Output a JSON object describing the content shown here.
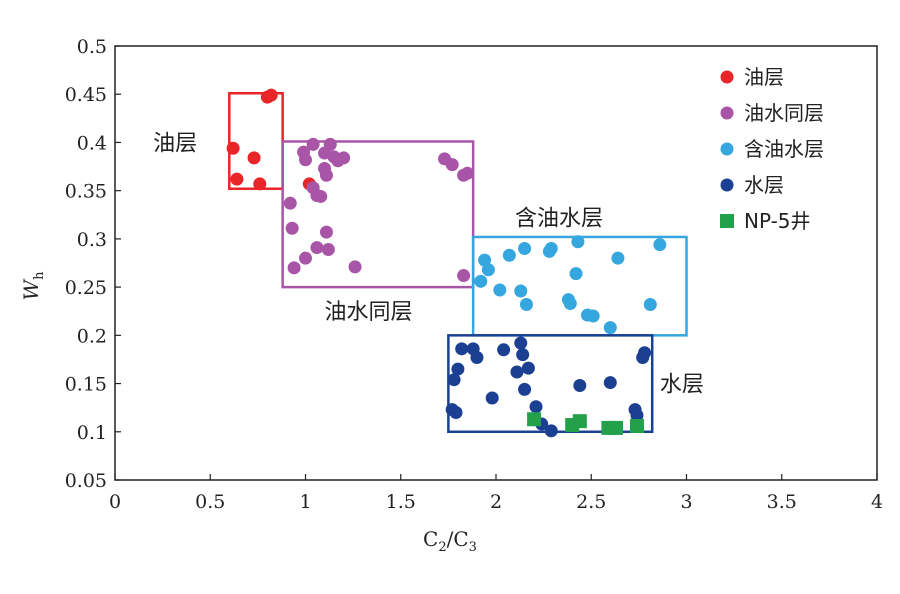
{
  "chart_data": {
    "type": "scatter",
    "xlabel": {
      "base": "C",
      "sub1": "2",
      "mid": "/C",
      "sub2": "3"
    },
    "ylabel": {
      "base": "W",
      "sub": "h"
    },
    "xlim": [
      0,
      4
    ],
    "ylim": [
      0.05,
      0.5
    ],
    "xticks": [
      "0",
      "0.5",
      "1",
      "1.5",
      "2",
      "2.5",
      "3",
      "3.5",
      "4"
    ],
    "yticks": [
      "0.05",
      "0.1",
      "0.15",
      "0.2",
      "0.25",
      "0.3",
      "0.35",
      "0.4",
      "0.45",
      "0.5"
    ],
    "grid": false,
    "legend_position": "top-right",
    "series": [
      {
        "name": "油层",
        "color": "#e8262a",
        "marker": "circle",
        "points": [
          [
            0.82,
            0.449
          ],
          [
            0.8,
            0.447
          ],
          [
            0.62,
            0.394
          ],
          [
            0.73,
            0.384
          ],
          [
            0.64,
            0.362
          ],
          [
            0.76,
            0.357
          ],
          [
            1.02,
            0.357
          ]
        ]
      },
      {
        "name": "油水同层",
        "color": "#a855a8",
        "marker": "circle",
        "points": [
          [
            1.04,
            0.398
          ],
          [
            1.13,
            0.398
          ],
          [
            0.99,
            0.39
          ],
          [
            1.1,
            0.389
          ],
          [
            1.0,
            0.382
          ],
          [
            1.15,
            0.385
          ],
          [
            1.2,
            0.384
          ],
          [
            1.17,
            0.381
          ],
          [
            1.1,
            0.373
          ],
          [
            1.11,
            0.366
          ],
          [
            1.04,
            0.353
          ],
          [
            1.06,
            0.345
          ],
          [
            1.08,
            0.344
          ],
          [
            0.92,
            0.337
          ],
          [
            1.73,
            0.383
          ],
          [
            1.77,
            0.377
          ],
          [
            1.83,
            0.366
          ],
          [
            1.85,
            0.368
          ],
          [
            0.93,
            0.311
          ],
          [
            1.11,
            0.307
          ],
          [
            1.06,
            0.291
          ],
          [
            1.12,
            0.289
          ],
          [
            1.0,
            0.28
          ],
          [
            0.94,
            0.27
          ],
          [
            1.26,
            0.271
          ],
          [
            1.83,
            0.262
          ]
        ]
      },
      {
        "name": "含油水层",
        "color": "#35a7de",
        "marker": "circle",
        "points": [
          [
            2.29,
            0.29
          ],
          [
            2.15,
            0.29
          ],
          [
            2.43,
            0.297
          ],
          [
            2.28,
            0.287
          ],
          [
            2.86,
            0.294
          ],
          [
            2.64,
            0.28
          ],
          [
            2.07,
            0.283
          ],
          [
            1.94,
            0.278
          ],
          [
            1.96,
            0.268
          ],
          [
            2.42,
            0.264
          ],
          [
            1.92,
            0.256
          ],
          [
            2.02,
            0.247
          ],
          [
            2.13,
            0.246
          ],
          [
            2.38,
            0.237
          ],
          [
            2.39,
            0.233
          ],
          [
            2.16,
            0.232
          ],
          [
            2.81,
            0.232
          ],
          [
            2.48,
            0.221
          ],
          [
            2.51,
            0.22
          ],
          [
            2.6,
            0.208
          ]
        ]
      },
      {
        "name": "水层",
        "color": "#1b3f91",
        "marker": "circle",
        "points": [
          [
            1.82,
            0.186
          ],
          [
            1.88,
            0.186
          ],
          [
            2.13,
            0.192
          ],
          [
            2.04,
            0.185
          ],
          [
            2.14,
            0.18
          ],
          [
            1.9,
            0.177
          ],
          [
            2.78,
            0.182
          ],
          [
            2.77,
            0.177
          ],
          [
            1.8,
            0.165
          ],
          [
            2.17,
            0.166
          ],
          [
            2.11,
            0.162
          ],
          [
            1.78,
            0.154
          ],
          [
            2.44,
            0.148
          ],
          [
            2.6,
            0.151
          ],
          [
            2.15,
            0.144
          ],
          [
            2.21,
            0.126
          ],
          [
            1.98,
            0.135
          ],
          [
            1.77,
            0.123
          ],
          [
            1.79,
            0.12
          ],
          [
            2.73,
            0.123
          ],
          [
            2.74,
            0.117
          ],
          [
            2.24,
            0.108
          ],
          [
            2.29,
            0.101
          ]
        ]
      },
      {
        "name": "NP-5井",
        "color": "#23a04a",
        "marker": "square",
        "points": [
          [
            2.2,
            0.113
          ],
          [
            2.44,
            0.111
          ],
          [
            2.4,
            0.107
          ],
          [
            2.59,
            0.104
          ],
          [
            2.63,
            0.104
          ],
          [
            2.74,
            0.106
          ]
        ]
      }
    ],
    "regions": [
      {
        "label": "油层",
        "color": "#e8262a",
        "x": [
          0.6,
          0.88
        ],
        "y": [
          0.352,
          0.451
        ],
        "label_x": 0.2,
        "label_y": 0.4
      },
      {
        "label": "油水同层",
        "color": "#a855a8",
        "x": [
          0.88,
          1.88
        ],
        "y": [
          0.25,
          0.401
        ],
        "label_x": 1.1,
        "label_y": 0.225
      },
      {
        "label": "含油水层",
        "color": "#35a7de",
        "x": [
          1.88,
          3.0
        ],
        "y": [
          0.2,
          0.302
        ],
        "label_x": 2.1,
        "label_y": 0.322
      },
      {
        "label": "水层",
        "color": "#1b3f91",
        "x": [
          1.75,
          2.82
        ],
        "y": [
          0.1,
          0.2
        ],
        "label_x": 2.86,
        "label_y": 0.15
      }
    ]
  }
}
